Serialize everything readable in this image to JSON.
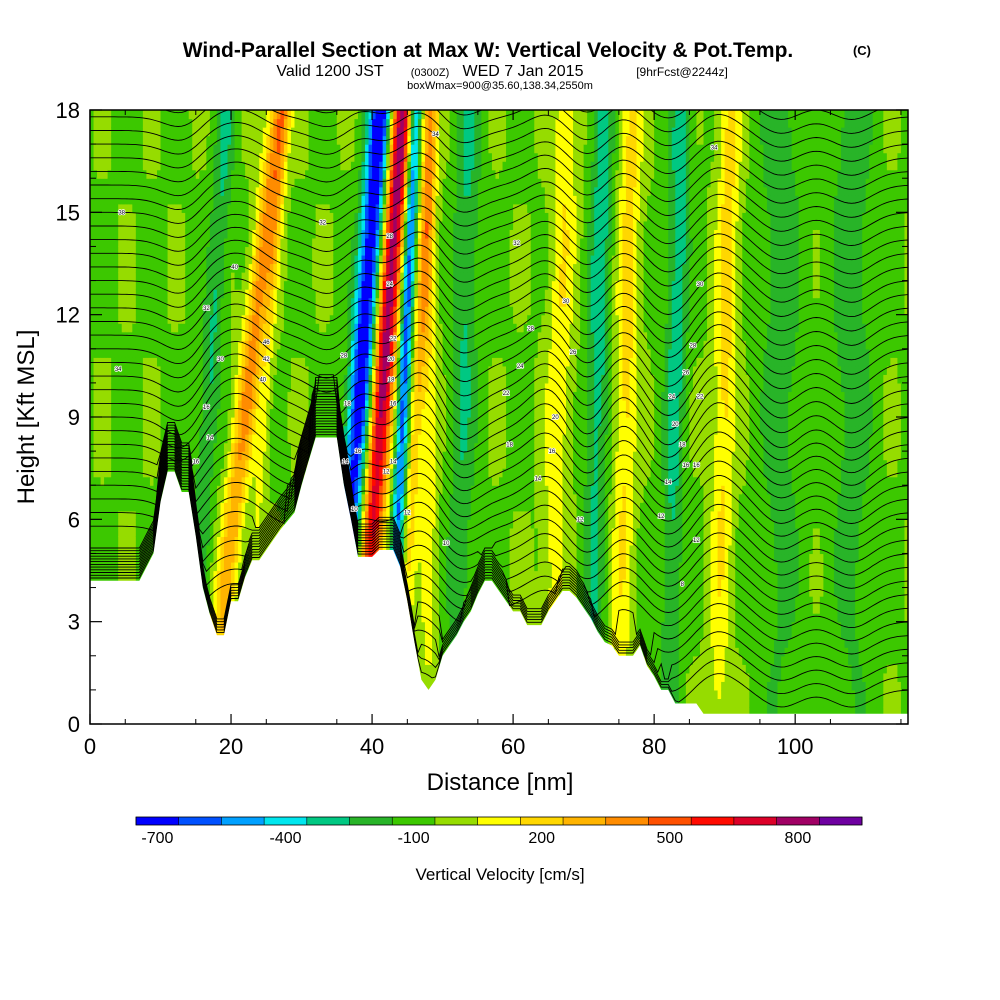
{
  "header": {
    "title": "Wind-Parallel Section at Max W: Vertical Velocity & Pot.Temp.",
    "title_mark": "(C)",
    "sub_a": "Valid 1200 JST",
    "sub_b": "(0300Z)",
    "sub_c": "WED 7 Jan 2015",
    "sub_d": "[9hrFcst@2244z]",
    "sub_e": "boxWmax=900@35.60,138.34,2550m"
  },
  "chart_data": {
    "type": "heatmap",
    "xlabel": "Distance [nm]",
    "ylabel": "Height [Kft MSL]",
    "xlim": [
      0,
      116
    ],
    "ylim": [
      0,
      18
    ],
    "x_ticks": [
      0,
      20,
      40,
      60,
      80,
      100
    ],
    "y_ticks": [
      0,
      3,
      6,
      9,
      12,
      15,
      18
    ],
    "colorbar": {
      "label": "Vertical Velocity [cm/s]",
      "min": -750,
      "max": 950,
      "step": 100,
      "tick_values": [
        -700,
        -400,
        -100,
        200,
        500,
        800
      ],
      "tick_labels": [
        "-700",
        "-400",
        "-100",
        "200",
        "500",
        "800"
      ],
      "colors": [
        "#0000ff",
        "#0050ff",
        "#00a0ff",
        "#00e6ee",
        "#00c882",
        "#28b428",
        "#3cc800",
        "#96dc00",
        "#ffff00",
        "#ffd700",
        "#ffb400",
        "#ff8c00",
        "#ff5000",
        "#ff0a00",
        "#dc0028",
        "#a00064",
        "#6e00a0"
      ]
    },
    "terrain": [
      [
        0,
        4.2
      ],
      [
        4,
        4.2
      ],
      [
        7,
        4.2
      ],
      [
        9,
        5.0
      ],
      [
        10,
        6.5
      ],
      [
        11,
        7.4
      ],
      [
        12,
        7.4
      ],
      [
        13,
        6.8
      ],
      [
        14,
        6.8
      ],
      [
        15,
        5.5
      ],
      [
        16,
        4.0
      ],
      [
        17,
        3.2
      ],
      [
        18,
        2.6
      ],
      [
        19,
        2.6
      ],
      [
        20,
        3.6
      ],
      [
        21,
        3.6
      ],
      [
        22,
        4.3
      ],
      [
        23,
        4.8
      ],
      [
        24,
        4.8
      ],
      [
        26,
        5.4
      ],
      [
        27,
        5.7
      ],
      [
        29,
        6.2
      ],
      [
        30,
        7.0
      ],
      [
        31,
        7.7
      ],
      [
        32,
        8.4
      ],
      [
        35,
        8.4
      ],
      [
        36,
        7.0
      ],
      [
        37,
        6.0
      ],
      [
        38,
        4.9
      ],
      [
        40,
        4.9
      ],
      [
        41,
        5.1
      ],
      [
        43,
        5.1
      ],
      [
        44,
        4.6
      ],
      [
        45,
        3.6
      ],
      [
        46,
        2.4
      ],
      [
        47,
        1.3
      ],
      [
        48,
        1.0
      ],
      [
        49,
        1.3
      ],
      [
        50,
        2.0
      ],
      [
        51,
        2.3
      ],
      [
        52,
        2.6
      ],
      [
        53,
        3.0
      ],
      [
        54,
        3.3
      ],
      [
        55,
        3.8
      ],
      [
        56,
        4.2
      ],
      [
        57,
        4.2
      ],
      [
        58,
        3.9
      ],
      [
        59,
        3.6
      ],
      [
        60,
        3.3
      ],
      [
        61,
        3.3
      ],
      [
        62,
        2.9
      ],
      [
        64,
        2.9
      ],
      [
        65,
        3.3
      ],
      [
        66,
        3.6
      ],
      [
        67,
        3.9
      ],
      [
        68,
        3.9
      ],
      [
        69,
        3.7
      ],
      [
        70,
        3.4
      ],
      [
        71,
        3.1
      ],
      [
        72,
        2.7
      ],
      [
        73,
        2.4
      ],
      [
        74,
        2.3
      ],
      [
        75,
        2.0
      ],
      [
        77,
        2.0
      ],
      [
        78,
        2.3
      ],
      [
        79,
        1.7
      ],
      [
        80,
        1.4
      ],
      [
        81,
        1.0
      ],
      [
        82,
        1.0
      ],
      [
        83,
        0.6
      ],
      [
        85,
        0.6
      ],
      [
        86,
        0.6
      ],
      [
        87,
        0.3
      ],
      [
        100,
        0.3
      ],
      [
        116,
        0.3
      ]
    ],
    "updrafts": [
      {
        "x_base": 17,
        "tilt": 0.55,
        "width": 1.6,
        "w": 450
      },
      {
        "x_base": 38,
        "tilt": 0.35,
        "width": 1.7,
        "w": 900
      },
      {
        "x_base": 44,
        "tilt": 0.25,
        "width": 1.0,
        "w": 300
      },
      {
        "x_base": 48,
        "tilt": 0.0,
        "width": 1.2,
        "w": 200
      },
      {
        "x_base": 65,
        "tilt": 0.15,
        "width": 1.8,
        "w": 200
      },
      {
        "x_base": 75,
        "tilt": 0.1,
        "width": 1.6,
        "w": 250
      },
      {
        "x_base": 89,
        "tilt": 0.1,
        "width": 1.6,
        "w": 250
      },
      {
        "x_base": 22,
        "tilt": 0.3,
        "width": 0.9,
        "w": 150
      }
    ],
    "downdrafts": [
      {
        "x_base": 35,
        "tilt": 0.35,
        "width": 1.7,
        "w": -750
      },
      {
        "x_base": 42.5,
        "tilt": 0.2,
        "width": 0.9,
        "w": -600
      },
      {
        "x_base": 14,
        "tilt": 0.3,
        "width": 1.4,
        "w": -200
      },
      {
        "x_base": 52,
        "tilt": 0.1,
        "width": 1.8,
        "w": -200
      },
      {
        "x_base": 71,
        "tilt": 0.1,
        "width": 1.6,
        "w": -250
      },
      {
        "x_base": 82,
        "tilt": 0.1,
        "width": 1.5,
        "w": -250
      },
      {
        "x_base": 98,
        "tilt": 0.0,
        "width": 3.0,
        "w": -150
      },
      {
        "x_base": 108,
        "tilt": 0.0,
        "width": 3.0,
        "w": -150
      }
    ],
    "theta_contour_labels": [
      {
        "x": 4.5,
        "y": 15.0,
        "text": "38"
      },
      {
        "x": 4.0,
        "y": 10.4,
        "text": "34"
      },
      {
        "x": 20.5,
        "y": 13.4,
        "text": "40"
      },
      {
        "x": 16.5,
        "y": 12.2,
        "text": "32"
      },
      {
        "x": 18.5,
        "y": 10.7,
        "text": "30"
      },
      {
        "x": 16.5,
        "y": 9.3,
        "text": "16"
      },
      {
        "x": 17.0,
        "y": 8.4,
        "text": "14"
      },
      {
        "x": 15.0,
        "y": 7.7,
        "text": "16"
      },
      {
        "x": 25.0,
        "y": 11.2,
        "text": "46"
      },
      {
        "x": 25.0,
        "y": 10.7,
        "text": "42"
      },
      {
        "x": 24.5,
        "y": 10.1,
        "text": "40"
      },
      {
        "x": 33.0,
        "y": 14.7,
        "text": "32"
      },
      {
        "x": 42.5,
        "y": 14.3,
        "text": "28"
      },
      {
        "x": 42.5,
        "y": 12.9,
        "text": "24"
      },
      {
        "x": 43.0,
        "y": 11.3,
        "text": "22"
      },
      {
        "x": 42.7,
        "y": 10.7,
        "text": "20"
      },
      {
        "x": 42.7,
        "y": 10.1,
        "text": "18"
      },
      {
        "x": 43.0,
        "y": 9.4,
        "text": "16"
      },
      {
        "x": 36.0,
        "y": 10.8,
        "text": "28"
      },
      {
        "x": 36.5,
        "y": 9.4,
        "text": "18"
      },
      {
        "x": 38.0,
        "y": 8.0,
        "text": "16"
      },
      {
        "x": 36.2,
        "y": 7.7,
        "text": "14"
      },
      {
        "x": 37.5,
        "y": 6.3,
        "text": "10"
      },
      {
        "x": 43.0,
        "y": 7.7,
        "text": "14"
      },
      {
        "x": 42.0,
        "y": 7.4,
        "text": "12"
      },
      {
        "x": 45.0,
        "y": 6.2,
        "text": "12"
      },
      {
        "x": 49.0,
        "y": 17.3,
        "text": "34"
      },
      {
        "x": 60.5,
        "y": 14.1,
        "text": "32"
      },
      {
        "x": 67.5,
        "y": 12.4,
        "text": "30"
      },
      {
        "x": 62.5,
        "y": 11.6,
        "text": "28"
      },
      {
        "x": 68.5,
        "y": 10.9,
        "text": "26"
      },
      {
        "x": 61.0,
        "y": 10.5,
        "text": "24"
      },
      {
        "x": 59.0,
        "y": 9.7,
        "text": "22"
      },
      {
        "x": 66.0,
        "y": 9.0,
        "text": "20"
      },
      {
        "x": 59.5,
        "y": 8.2,
        "text": "18"
      },
      {
        "x": 65.5,
        "y": 8.0,
        "text": "16"
      },
      {
        "x": 63.5,
        "y": 7.2,
        "text": "14"
      },
      {
        "x": 50.5,
        "y": 5.3,
        "text": "10"
      },
      {
        "x": 69.5,
        "y": 6.0,
        "text": "12"
      },
      {
        "x": 88.5,
        "y": 16.9,
        "text": "34"
      },
      {
        "x": 86.5,
        "y": 12.9,
        "text": "30"
      },
      {
        "x": 85.5,
        "y": 11.1,
        "text": "28"
      },
      {
        "x": 84.5,
        "y": 10.3,
        "text": "26"
      },
      {
        "x": 82.5,
        "y": 9.6,
        "text": "24"
      },
      {
        "x": 86.5,
        "y": 9.6,
        "text": "22"
      },
      {
        "x": 83.0,
        "y": 8.8,
        "text": "20"
      },
      {
        "x": 84.0,
        "y": 8.2,
        "text": "18"
      },
      {
        "x": 84.5,
        "y": 7.6,
        "text": "16"
      },
      {
        "x": 86.0,
        "y": 7.6,
        "text": "16"
      },
      {
        "x": 82.0,
        "y": 7.1,
        "text": "14"
      },
      {
        "x": 81.0,
        "y": 6.1,
        "text": "12"
      },
      {
        "x": 86.0,
        "y": 5.4,
        "text": "12"
      },
      {
        "x": 84.0,
        "y": 4.1,
        "text": "8"
      }
    ]
  }
}
